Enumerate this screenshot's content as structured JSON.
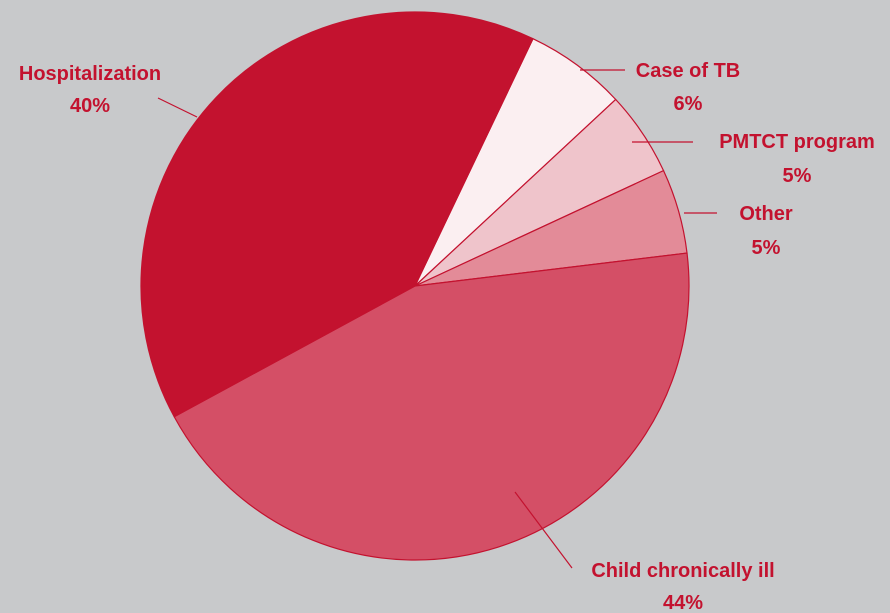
{
  "chart_data": {
    "type": "pie",
    "title": "",
    "slices": [
      {
        "label": "Case of TB",
        "value": 6,
        "pct_label": "6%",
        "color": "#fbeff1"
      },
      {
        "label": "PMTCT program",
        "value": 5,
        "pct_label": "5%",
        "color": "#efc4cb"
      },
      {
        "label": "Other",
        "value": 5,
        "pct_label": "5%",
        "color": "#e38b98"
      },
      {
        "label": "Child chronically ill",
        "value": 44,
        "pct_label": "44%",
        "color": "#d44f66"
      },
      {
        "label": "Hospitalization",
        "value": 40,
        "pct_label": "40%",
        "color": "#c3122f"
      }
    ],
    "slice_border_color": "#c3122f",
    "label_color": "#c3122f",
    "background": "#c8c9cb"
  }
}
